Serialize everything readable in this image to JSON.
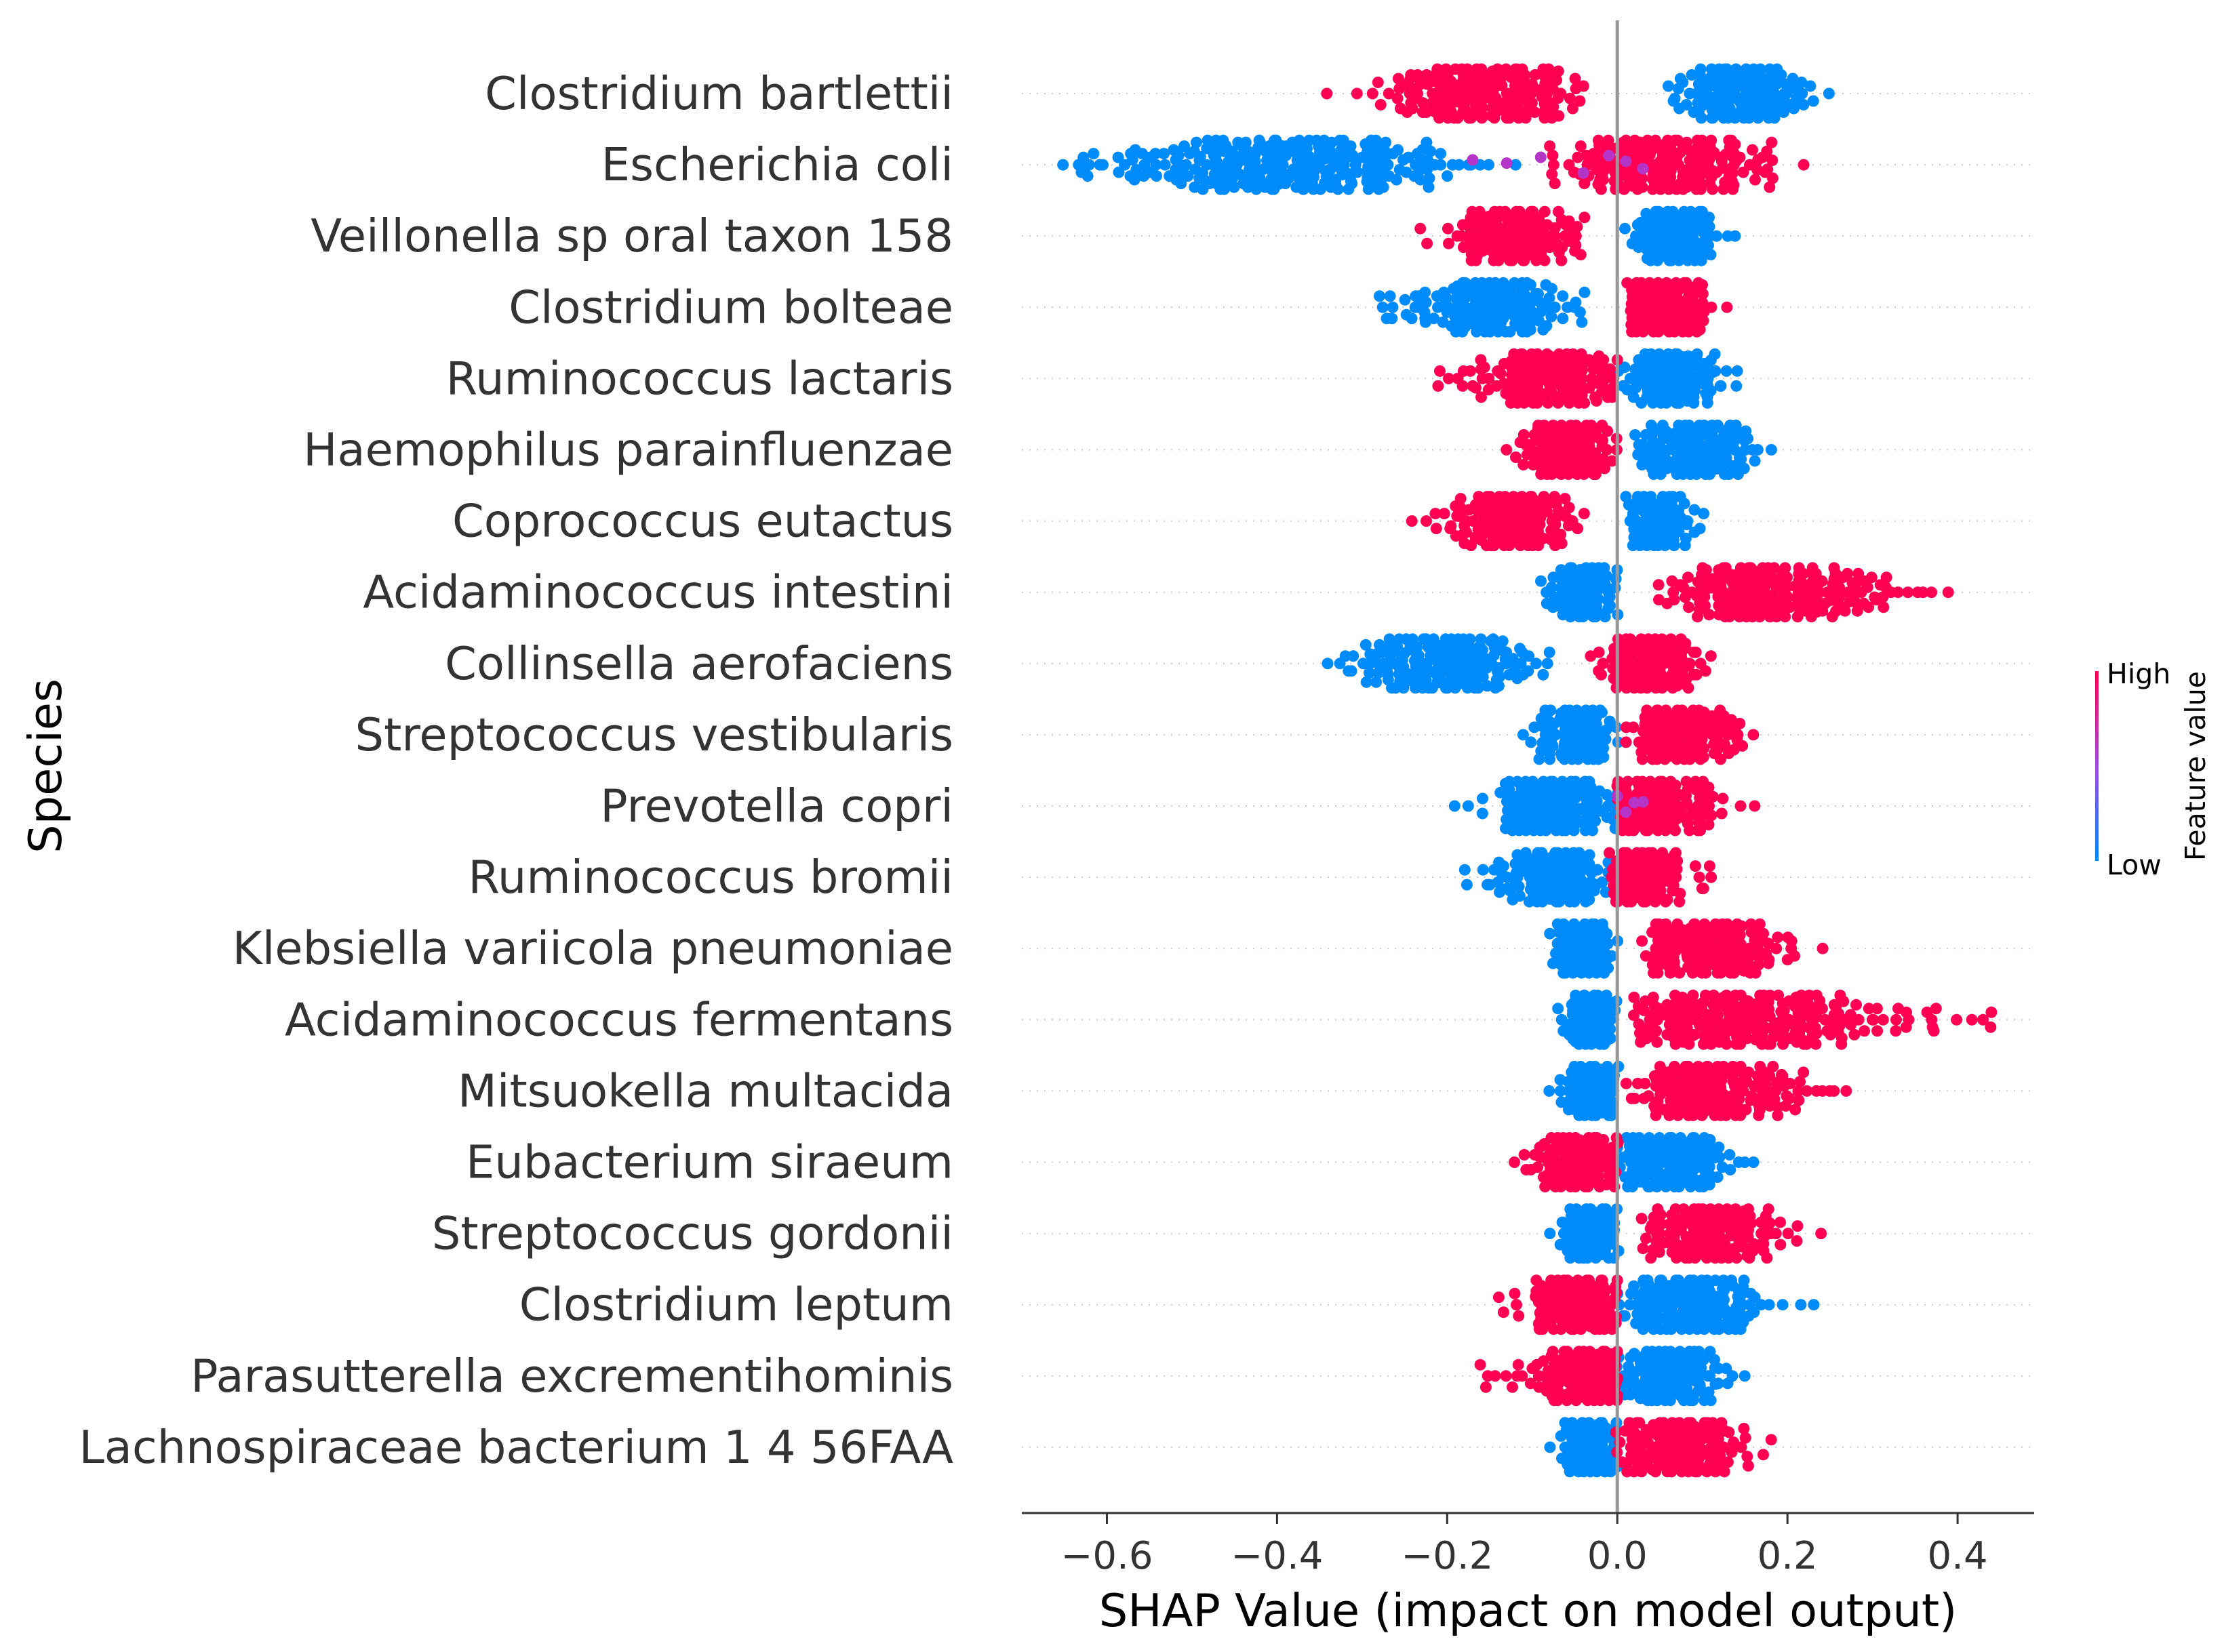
{
  "chart_data": {
    "type": "scatter",
    "subtype": "shap-beeswarm",
    "xlabel": "SHAP Value (impact on model output)",
    "ylabel": "Species",
    "xlim": [
      -0.7,
      0.49
    ],
    "xticks": [
      -0.6,
      -0.4,
      -0.2,
      0.0,
      0.2,
      0.4
    ],
    "xtick_labels": [
      "−0.6",
      "−0.4",
      "−0.2",
      "0.0",
      "0.2",
      "0.4"
    ],
    "grid": "dotted horizontal guide per row",
    "zero_line": 0.0,
    "colorbar": {
      "title": "Feature value",
      "high_label": "High",
      "low_label": "Low",
      "high_color": "#ff0052",
      "low_color": "#008bfb",
      "placement": "right"
    },
    "features": [
      {
        "name": "Clostridium  bartlettii",
        "low": {
          "min": 0.06,
          "max": 0.25,
          "center": 0.14
        },
        "high": {
          "min": -0.34,
          "max": -0.04,
          "center": -0.15
        }
      },
      {
        "name": "Escherichia coli",
        "low": {
          "min": -0.65,
          "max": -0.12,
          "center": -0.4
        },
        "high": {
          "min": -0.08,
          "max": 0.22,
          "center": 0.06
        },
        "purple": [
          -0.17,
          -0.13,
          -0.09,
          -0.04,
          -0.01,
          0.01,
          0.03
        ]
      },
      {
        "name": "Veillonella sp  oral taxon 158",
        "low": {
          "min": 0.01,
          "max": 0.14,
          "center": 0.07
        },
        "high": {
          "min": -0.23,
          "max": -0.04,
          "center": -0.12
        }
      },
      {
        "name": "Clostridium bolteae",
        "low": {
          "min": -0.28,
          "max": -0.04,
          "center": -0.15
        },
        "high": {
          "min": 0.01,
          "max": 0.13,
          "center": 0.06
        }
      },
      {
        "name": "Ruminococcus lactaris",
        "low": {
          "min": 0.0,
          "max": 0.14,
          "center": 0.06
        },
        "high": {
          "min": -0.21,
          "max": 0.0,
          "center": -0.08
        }
      },
      {
        "name": "Haemophilus parainfluenzae",
        "low": {
          "min": 0.02,
          "max": 0.18,
          "center": 0.09
        },
        "high": {
          "min": -0.13,
          "max": 0.0,
          "center": -0.06
        }
      },
      {
        "name": "Coprococcus eutactus",
        "low": {
          "min": 0.01,
          "max": 0.1,
          "center": 0.05
        },
        "high": {
          "min": -0.24,
          "max": -0.04,
          "center": -0.12
        }
      },
      {
        "name": "Acidaminococcus intestini",
        "low": {
          "min": -0.09,
          "max": 0.0,
          "center": -0.04
        },
        "high": {
          "min": 0.05,
          "max": 0.39,
          "center": 0.18
        }
      },
      {
        "name": "Collinsella aerofaciens",
        "low": {
          "min": -0.34,
          "max": -0.08,
          "center": -0.2
        },
        "high": {
          "min": -0.03,
          "max": 0.11,
          "center": 0.04
        }
      },
      {
        "name": "Streptococcus vestibularis",
        "low": {
          "min": -0.11,
          "max": 0.0,
          "center": -0.05
        },
        "high": {
          "min": 0.01,
          "max": 0.16,
          "center": 0.08
        }
      },
      {
        "name": "Prevotella copri",
        "low": {
          "min": -0.19,
          "max": 0.0,
          "center": -0.07
        },
        "high": {
          "min": 0.0,
          "max": 0.16,
          "center": 0.05
        },
        "purple": [
          0.0,
          0.01,
          0.02,
          0.03
        ]
      },
      {
        "name": "Ruminococcus bromii",
        "low": {
          "min": -0.18,
          "max": -0.01,
          "center": -0.08
        },
        "high": {
          "min": -0.01,
          "max": 0.11,
          "center": 0.03
        }
      },
      {
        "name": "Klebsiella variicola pneumoniae",
        "low": {
          "min": -0.08,
          "max": 0.0,
          "center": -0.04
        },
        "high": {
          "min": 0.03,
          "max": 0.24,
          "center": 0.11
        }
      },
      {
        "name": "Acidaminococcus fermentans",
        "low": {
          "min": -0.07,
          "max": 0.0,
          "center": -0.03
        },
        "high": {
          "min": 0.02,
          "max": 0.44,
          "center": 0.16
        }
      },
      {
        "name": "Mitsuokella multacida",
        "low": {
          "min": -0.08,
          "max": 0.0,
          "center": -0.03
        },
        "high": {
          "min": 0.01,
          "max": 0.27,
          "center": 0.11
        }
      },
      {
        "name": "Eubacterium siraeum",
        "low": {
          "min": 0.0,
          "max": 0.16,
          "center": 0.06
        },
        "high": {
          "min": -0.12,
          "max": 0.0,
          "center": -0.04
        }
      },
      {
        "name": "Streptococcus gordonii",
        "low": {
          "min": -0.08,
          "max": 0.0,
          "center": -0.03
        },
        "high": {
          "min": 0.03,
          "max": 0.24,
          "center": 0.11
        }
      },
      {
        "name": "Clostridium leptum",
        "low": {
          "min": 0.0,
          "max": 0.23,
          "center": 0.09
        },
        "high": {
          "min": -0.14,
          "max": 0.0,
          "center": -0.03
        }
      },
      {
        "name": "Parasutterella excrementihominis",
        "low": {
          "min": 0.0,
          "max": 0.15,
          "center": 0.06
        },
        "high": {
          "min": -0.16,
          "max": 0.0,
          "center": -0.03
        }
      },
      {
        "name": "Lachnospiraceae bacterium 1 4 56FAA",
        "low": {
          "min": -0.08,
          "max": 0.0,
          "center": -0.03
        },
        "high": {
          "min": 0.0,
          "max": 0.18,
          "center": 0.07
        }
      }
    ]
  }
}
